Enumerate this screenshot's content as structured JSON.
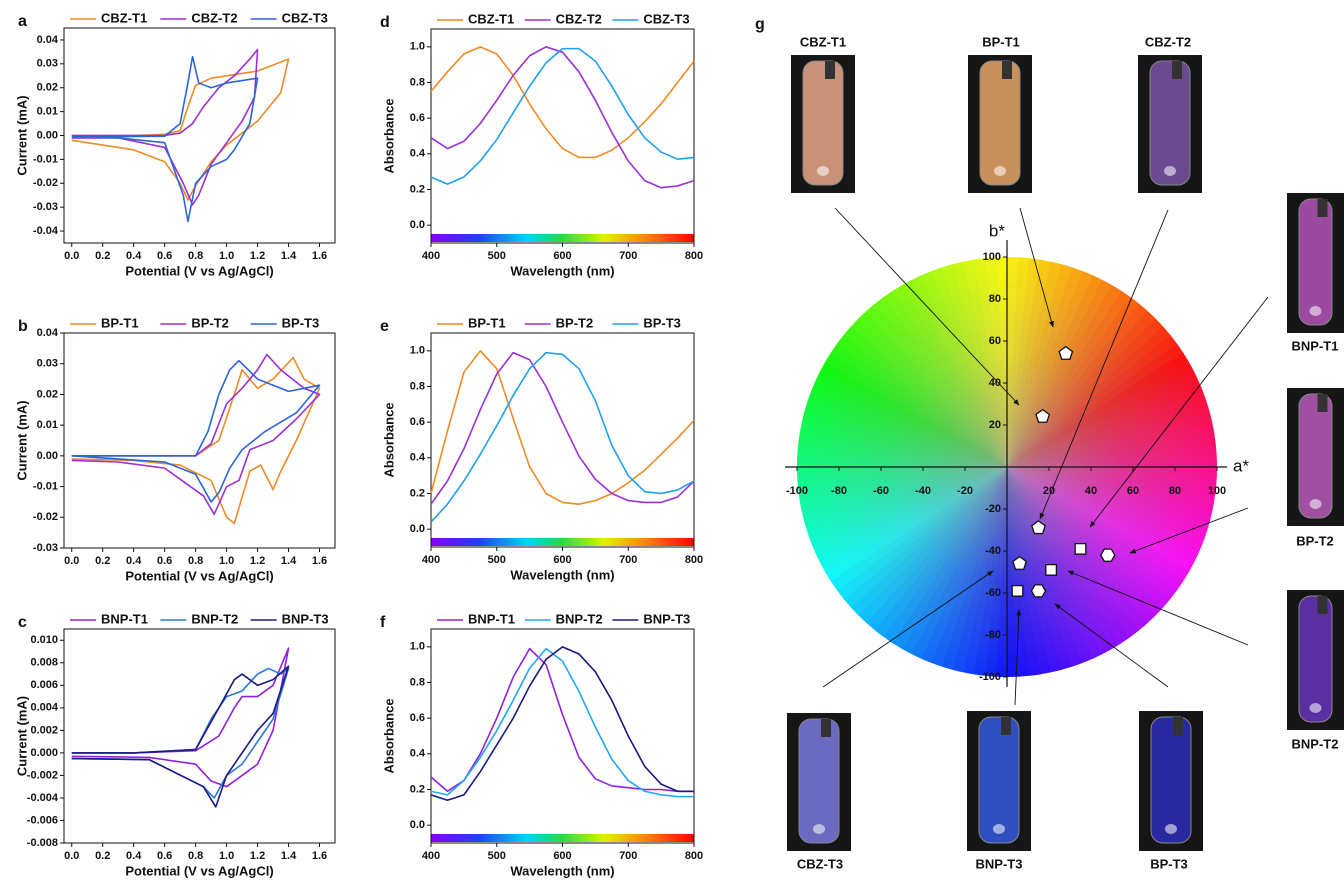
{
  "chart_data": [
    {
      "type": "line",
      "panel": "a",
      "xlabel": "Potential (V vs Ag/AgCl)",
      "ylabel": "Current (mA)",
      "xlim": [
        -0.05,
        1.7
      ],
      "ylim": [
        -0.045,
        0.045
      ],
      "xticks": [
        {
          "value": 0,
          "label": "0.0"
        },
        0.2,
        0.4,
        0.6,
        0.8,
        {
          "value": 1,
          "label": "1.0"
        },
        1.2,
        1.4,
        1.6
      ],
      "yticks": [
        -0.04,
        -0.03,
        -0.02,
        -0.01,
        {
          "value": 0,
          "label": "0.00"
        },
        0.01,
        0.02,
        0.03,
        0.04
      ],
      "series": [
        {
          "name": "CBZ-T1",
          "color": "#f08a24",
          "x": [
            0,
            0.2,
            0.4,
            0.6,
            0.7,
            0.75,
            0.8,
            0.9,
            1.0,
            1.2,
            1.4,
            1.35,
            1.2,
            1.0,
            0.9,
            0.8,
            0.75,
            0.7,
            0.6,
            0.4,
            0.2,
            0
          ],
          "values": [
            0,
            0,
            0,
            0.0005,
            0.002,
            0.012,
            0.021,
            0.024,
            0.025,
            0.027,
            0.032,
            0.018,
            0.006,
            -0.004,
            -0.011,
            -0.021,
            -0.027,
            -0.02,
            -0.011,
            -0.006,
            -0.004,
            -0.002
          ]
        },
        {
          "name": "CBZ-T2",
          "color": "#9b30d9",
          "x": [
            0,
            0.3,
            0.6,
            0.7,
            0.78,
            0.85,
            0.95,
            1.05,
            1.15,
            1.2,
            1.18,
            1.1,
            1.0,
            0.9,
            0.82,
            0.78,
            0.72,
            0.6,
            0.3,
            0
          ],
          "values": [
            0,
            0,
            0,
            0.001,
            0.005,
            0.012,
            0.02,
            0.025,
            0.032,
            0.036,
            0.016,
            0.006,
            -0.003,
            -0.012,
            -0.025,
            -0.029,
            -0.02,
            -0.005,
            -0.001,
            -0.001
          ]
        },
        {
          "name": "CBZ-T3",
          "color": "#2b65d9",
          "x": [
            0,
            0.3,
            0.6,
            0.7,
            0.75,
            0.78,
            0.82,
            0.9,
            1.0,
            1.2,
            1.15,
            1.05,
            1.0,
            0.9,
            0.8,
            0.75,
            0.72,
            0.6,
            0.3,
            0
          ],
          "values": [
            -0.0005,
            -0.0005,
            -0.0003,
            0.005,
            0.022,
            0.033,
            0.022,
            0.02,
            0.022,
            0.024,
            0.005,
            -0.006,
            -0.01,
            -0.013,
            -0.02,
            -0.036,
            -0.025,
            -0.003,
            -0.001,
            -0.0005
          ]
        }
      ]
    },
    {
      "type": "line",
      "panel": "b",
      "xlabel": "Potential (V vs Ag/AgCl)",
      "ylabel": "Current (mA)",
      "xlim": [
        -0.05,
        1.7
      ],
      "ylim": [
        -0.03,
        0.04
      ],
      "xticks": [
        {
          "value": 0,
          "label": "0.0"
        },
        0.2,
        0.4,
        0.6,
        0.8,
        {
          "value": 1,
          "label": "1.0"
        },
        1.2,
        1.4,
        1.6
      ],
      "yticks": [
        -0.03,
        -0.02,
        -0.01,
        {
          "value": 0,
          "label": "0.00"
        },
        0.01,
        0.02,
        0.03,
        0.04
      ],
      "series": [
        {
          "name": "BP-T1",
          "color": "#f08a24",
          "x": [
            0,
            0.4,
            0.8,
            0.95,
            1.05,
            1.1,
            1.2,
            1.3,
            1.43,
            1.5,
            1.6,
            1.45,
            1.35,
            1.3,
            1.22,
            1.15,
            1.05,
            1.0,
            0.9,
            0.7,
            0.4,
            0
          ],
          "values": [
            0,
            0,
            0,
            0.005,
            0.02,
            0.028,
            0.022,
            0.025,
            0.032,
            0.025,
            0.022,
            0.005,
            -0.005,
            -0.011,
            -0.003,
            -0.005,
            -0.022,
            -0.02,
            -0.008,
            -0.003,
            -0.0015,
            -0.001
          ]
        },
        {
          "name": "BP-T2",
          "color": "#9b30d9",
          "x": [
            0,
            0.4,
            0.8,
            0.9,
            1.0,
            1.1,
            1.2,
            1.26,
            1.35,
            1.5,
            1.6,
            1.45,
            1.3,
            1.15,
            1.08,
            1.0,
            0.92,
            0.85,
            0.6,
            0.3,
            0
          ],
          "values": [
            0,
            0,
            0,
            0.004,
            0.017,
            0.022,
            0.028,
            0.033,
            0.028,
            0.022,
            0.02,
            0.012,
            0.005,
            0.002,
            -0.008,
            -0.01,
            -0.019,
            -0.013,
            -0.004,
            -0.002,
            -0.0015
          ]
        },
        {
          "name": "BP-T3",
          "color": "#2b65d9",
          "x": [
            0,
            0.4,
            0.8,
            0.88,
            0.95,
            1.02,
            1.08,
            1.2,
            1.4,
            1.6,
            1.45,
            1.25,
            1.1,
            1.02,
            0.95,
            0.9,
            0.8,
            0.6,
            0.3,
            0
          ],
          "values": [
            0,
            0,
            0,
            0.008,
            0.02,
            0.028,
            0.031,
            0.025,
            0.021,
            0.023,
            0.014,
            0.008,
            0.002,
            -0.004,
            -0.012,
            -0.015,
            -0.006,
            -0.002,
            -0.001,
            0
          ]
        }
      ]
    },
    {
      "type": "line",
      "panel": "c",
      "xlabel": "Potential (V vs Ag/AgCl)",
      "ylabel": "Current (mA)",
      "xlim": [
        -0.05,
        1.7
      ],
      "ylim": [
        -0.008,
        0.011
      ],
      "xticks": [
        {
          "value": 0,
          "label": "0.0"
        },
        0.2,
        0.4,
        0.6,
        0.8,
        {
          "value": 1,
          "label": "1.0"
        },
        1.2,
        1.4,
        1.6
      ],
      "yticks": [
        -0.008,
        -0.006,
        -0.004,
        -0.002,
        {
          "value": 0,
          "label": "0.000"
        },
        0.002,
        0.004,
        0.006,
        0.008,
        {
          "value": 0.01,
          "label": "0.010"
        }
      ],
      "series": [
        {
          "name": "BNP-T1",
          "color": "#9020e0",
          "x": [
            0,
            0.4,
            0.8,
            0.95,
            1.05,
            1.1,
            1.2,
            1.3,
            1.4,
            1.3,
            1.2,
            1.1,
            1.0,
            0.9,
            0.8,
            0.5,
            0
          ],
          "values": [
            0,
            0,
            0.0002,
            0.0015,
            0.004,
            0.005,
            0.005,
            0.006,
            0.0093,
            0.002,
            -0.001,
            -0.002,
            -0.003,
            -0.0025,
            -0.001,
            -0.0004,
            -0.0003
          ]
        },
        {
          "name": "BNP-T2",
          "color": "#2a78d8",
          "x": [
            0,
            0.4,
            0.8,
            0.9,
            1.0,
            1.1,
            1.2,
            1.27,
            1.35,
            1.4,
            1.3,
            1.2,
            1.1,
            1.0,
            0.92,
            0.85,
            0.5,
            0
          ],
          "values": [
            0,
            0,
            0.0003,
            0.003,
            0.005,
            0.0055,
            0.007,
            0.0075,
            0.007,
            0.0075,
            0.003,
            0.001,
            -0.001,
            -0.002,
            -0.004,
            -0.003,
            -0.0006,
            -0.0005
          ]
        },
        {
          "name": "BNP-T3",
          "color": "#1a1a80",
          "x": [
            0,
            0.4,
            0.8,
            0.95,
            1.05,
            1.1,
            1.2,
            1.3,
            1.4,
            1.3,
            1.2,
            1.1,
            1.0,
            0.93,
            0.85,
            0.5,
            0
          ],
          "values": [
            0,
            0,
            0.0003,
            0.004,
            0.0065,
            0.007,
            0.006,
            0.0065,
            0.0077,
            0.0035,
            0.002,
            0,
            -0.002,
            -0.0048,
            -0.003,
            -0.0006,
            -0.0005
          ]
        }
      ]
    },
    {
      "type": "line",
      "panel": "d",
      "xlabel": "Wavelength (nm)",
      "ylabel": "Absorbance",
      "spectrum_bar": true,
      "xlim": [
        400,
        800
      ],
      "ylim": [
        -0.1,
        1.1
      ],
      "xticks": [
        400,
        500,
        600,
        700,
        800
      ],
      "yticks": [
        {
          "value": 0,
          "label": "0.0"
        },
        0.2,
        0.4,
        0.6,
        0.8,
        {
          "value": 1,
          "label": "1.0"
        }
      ],
      "x": [
        400,
        425,
        450,
        475,
        500,
        525,
        550,
        575,
        600,
        625,
        650,
        675,
        700,
        725,
        750,
        775,
        800
      ],
      "series": [
        {
          "name": "CBZ-T1",
          "color": "#f08a24",
          "values": [
            0.75,
            0.86,
            0.96,
            1.0,
            0.96,
            0.84,
            0.68,
            0.54,
            0.43,
            0.38,
            0.38,
            0.42,
            0.49,
            0.58,
            0.68,
            0.8,
            0.92
          ]
        },
        {
          "name": "CBZ-T2",
          "color": "#9b30d9",
          "values": [
            0.49,
            0.43,
            0.47,
            0.57,
            0.7,
            0.84,
            0.95,
            1.0,
            0.97,
            0.86,
            0.7,
            0.52,
            0.36,
            0.25,
            0.21,
            0.22,
            0.25
          ]
        },
        {
          "name": "CBZ-T3",
          "color": "#1ea0f0",
          "values": [
            0.27,
            0.23,
            0.27,
            0.36,
            0.48,
            0.63,
            0.78,
            0.91,
            0.99,
            0.99,
            0.92,
            0.78,
            0.62,
            0.49,
            0.41,
            0.37,
            0.38
          ]
        }
      ]
    },
    {
      "type": "line",
      "panel": "e",
      "xlabel": "Wavelength (nm)",
      "ylabel": "Absorbance",
      "spectrum_bar": true,
      "xlim": [
        400,
        800
      ],
      "ylim": [
        -0.1,
        1.1
      ],
      "xticks": [
        400,
        500,
        600,
        700,
        800
      ],
      "yticks": [
        {
          "value": 0,
          "label": "0.0"
        },
        0.2,
        0.4,
        0.6,
        0.8,
        {
          "value": 1,
          "label": "1.0"
        }
      ],
      "x": [
        400,
        425,
        450,
        475,
        500,
        525,
        550,
        575,
        600,
        625,
        650,
        675,
        700,
        725,
        750,
        775,
        800
      ],
      "series": [
        {
          "name": "BP-T1",
          "color": "#f08a24",
          "values": [
            0.2,
            0.55,
            0.88,
            1.0,
            0.9,
            0.62,
            0.35,
            0.2,
            0.15,
            0.14,
            0.16,
            0.2,
            0.26,
            0.33,
            0.42,
            0.51,
            0.61
          ]
        },
        {
          "name": "BP-T2",
          "color": "#9b30d9",
          "values": [
            0.14,
            0.27,
            0.45,
            0.67,
            0.87,
            0.99,
            0.95,
            0.8,
            0.6,
            0.41,
            0.28,
            0.2,
            0.16,
            0.15,
            0.15,
            0.18,
            0.27
          ]
        },
        {
          "name": "BP-T3",
          "color": "#1ea0f0",
          "values": [
            0.04,
            0.14,
            0.27,
            0.42,
            0.58,
            0.75,
            0.9,
            0.99,
            0.98,
            0.9,
            0.72,
            0.47,
            0.3,
            0.21,
            0.2,
            0.22,
            0.27
          ]
        }
      ]
    },
    {
      "type": "line",
      "panel": "f",
      "xlabel": "Wavelength (nm)",
      "ylabel": "Absorbance",
      "spectrum_bar": true,
      "xlim": [
        400,
        800
      ],
      "ylim": [
        -0.1,
        1.1
      ],
      "xticks": [
        400,
        500,
        600,
        700,
        800
      ],
      "yticks": [
        {
          "value": 0,
          "label": "0.0"
        },
        0.2,
        0.4,
        0.6,
        0.8,
        {
          "value": 1,
          "label": "1.0"
        }
      ],
      "x": [
        400,
        425,
        450,
        475,
        500,
        525,
        550,
        575,
        600,
        625,
        650,
        675,
        700,
        725,
        750,
        775,
        800
      ],
      "series": [
        {
          "name": "BNP-T1",
          "color": "#9020e0",
          "values": [
            0.27,
            0.19,
            0.25,
            0.4,
            0.6,
            0.83,
            0.99,
            0.9,
            0.62,
            0.38,
            0.26,
            0.22,
            0.21,
            0.2,
            0.2,
            0.19,
            0.19
          ]
        },
        {
          "name": "BNP-T2",
          "color": "#20a8f0",
          "values": [
            0.19,
            0.17,
            0.25,
            0.38,
            0.53,
            0.7,
            0.88,
            0.99,
            0.92,
            0.75,
            0.55,
            0.37,
            0.25,
            0.19,
            0.17,
            0.16,
            0.16
          ]
        },
        {
          "name": "BNP-T3",
          "color": "#1a1a80",
          "values": [
            0.17,
            0.14,
            0.17,
            0.3,
            0.45,
            0.6,
            0.78,
            0.93,
            1.0,
            0.96,
            0.86,
            0.7,
            0.5,
            0.33,
            0.23,
            0.19,
            0.19
          ]
        }
      ]
    },
    {
      "type": "scatter",
      "panel": "g",
      "xlabel": "a*",
      "ylabel": "b*",
      "color_wheel": true,
      "xlim": [
        -100,
        100
      ],
      "ylim": [
        -100,
        100
      ],
      "xticks": [
        -100,
        -80,
        -60,
        -40,
        -20,
        20,
        40,
        60,
        80,
        100
      ],
      "yticks": [
        -100,
        -80,
        -60,
        -40,
        -20,
        20,
        40,
        60,
        80,
        100
      ],
      "x": [
        28,
        17,
        15,
        6,
        35,
        21,
        5,
        48,
        15
      ],
      "values": [
        54,
        24,
        -29,
        -46,
        -39,
        -49,
        -59,
        -42,
        -59
      ],
      "markers": [
        "pentagon",
        "pentagon",
        "pentagon",
        "pentagon",
        "square",
        "square",
        "square",
        "hexagon",
        "hexagon"
      ],
      "photos": [
        {
          "label": "CBZ-T1",
          "color": "#c9907a"
        },
        {
          "label": "BP-T1",
          "color": "#c8905a"
        },
        {
          "label": "CBZ-T2",
          "color": "#6a4a90"
        },
        {
          "label": "BNP-T1",
          "color": "#9a4aa0"
        },
        {
          "label": "BP-T2",
          "color": "#a050a0"
        },
        {
          "label": "BNP-T2",
          "color": "#5a30a0"
        },
        {
          "label": "CBZ-T3",
          "color": "#6a6ac0"
        },
        {
          "label": "BNP-T3",
          "color": "#3050c0"
        },
        {
          "label": "BP-T3",
          "color": "#2a2aa0"
        }
      ]
    }
  ]
}
